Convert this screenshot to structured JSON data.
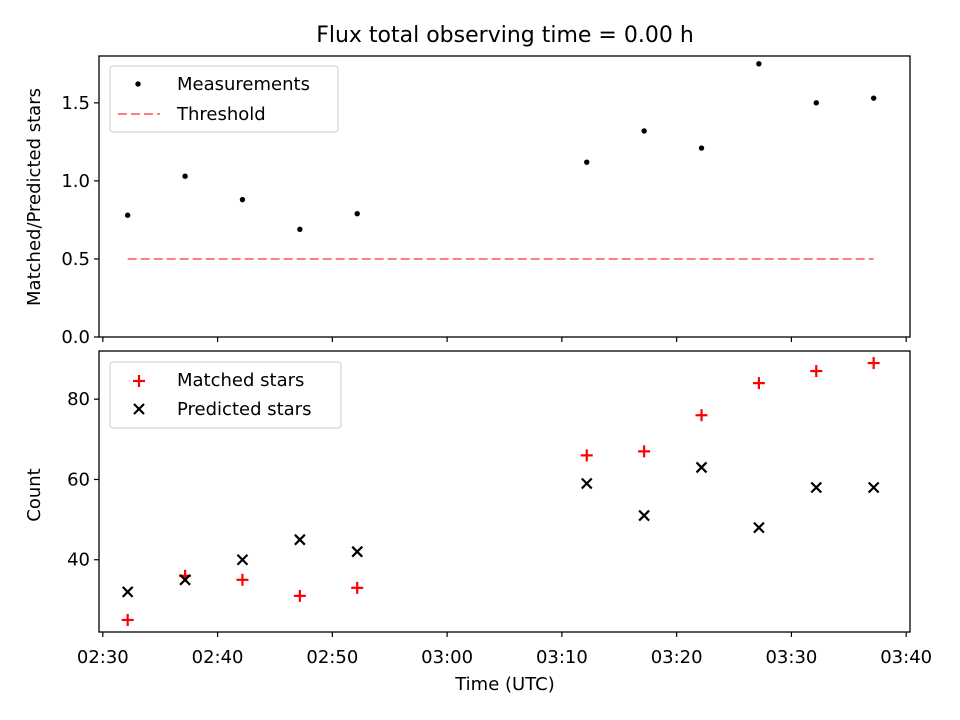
{
  "colors": {
    "measurement": "#000000",
    "threshold": "#ff7f7f",
    "matched": "#ff0000",
    "predicted": "#000000",
    "legend_border": "#cccccc"
  },
  "chart_data": [
    {
      "type": "scatter",
      "title": "Flux total observing time = 0.00 h",
      "xlabel": "",
      "ylabel": "Matched/Predicted stars",
      "ylim": [
        0.0,
        1.8
      ],
      "xlim": [
        "02:29:40",
        "03:40:20"
      ],
      "yticks": [
        0.0,
        0.5,
        1.0,
        1.5
      ],
      "ytick_labels": [
        "0.0",
        "0.5",
        "1.0",
        "1.5"
      ],
      "legend_position": "upper-left",
      "grid": false,
      "series": [
        {
          "name": "Measurements",
          "marker": "point",
          "x": [
            "02:32:10",
            "02:37:10",
            "02:42:10",
            "02:47:10",
            "02:52:10",
            "03:12:10",
            "03:17:10",
            "03:22:10",
            "03:27:10",
            "03:32:10",
            "03:37:10"
          ],
          "y": [
            0.78,
            1.03,
            0.88,
            0.69,
            0.79,
            1.12,
            1.32,
            1.21,
            1.75,
            1.5,
            1.53
          ]
        },
        {
          "name": "Threshold",
          "style": "dashed-line",
          "x": [
            "02:32:10",
            "03:37:10"
          ],
          "y": [
            0.5,
            0.5
          ]
        }
      ]
    },
    {
      "type": "scatter",
      "xlabel": "Time (UTC)",
      "ylabel": "Count",
      "ylim": [
        22,
        92
      ],
      "xlim": [
        "02:29:40",
        "03:40:20"
      ],
      "yticks": [
        40,
        60,
        80
      ],
      "ytick_labels": [
        "40",
        "60",
        "80"
      ],
      "xticks": [
        "02:30",
        "02:40",
        "02:50",
        "03:00",
        "03:10",
        "03:20",
        "03:30",
        "03:40"
      ],
      "xtick_labels": [
        "02:30",
        "02:40",
        "02:50",
        "03:00",
        "03:10",
        "03:20",
        "03:30",
        "03:40"
      ],
      "legend_position": "upper-left",
      "grid": false,
      "series": [
        {
          "name": "Matched stars",
          "marker": "plus",
          "x": [
            "02:32:10",
            "02:37:10",
            "02:42:10",
            "02:47:10",
            "02:52:10",
            "03:12:10",
            "03:17:10",
            "03:22:10",
            "03:27:10",
            "03:32:10",
            "03:37:10"
          ],
          "y": [
            25,
            36,
            35,
            31,
            33,
            66,
            67,
            76,
            84,
            87,
            89
          ]
        },
        {
          "name": "Predicted stars",
          "marker": "x",
          "x": [
            "02:32:10",
            "02:37:10",
            "02:42:10",
            "02:47:10",
            "02:52:10",
            "03:12:10",
            "03:17:10",
            "03:22:10",
            "03:27:10",
            "03:32:10",
            "03:37:10"
          ],
          "y": [
            32,
            35,
            40,
            45,
            42,
            59,
            51,
            63,
            48,
            58,
            58
          ]
        }
      ]
    }
  ]
}
